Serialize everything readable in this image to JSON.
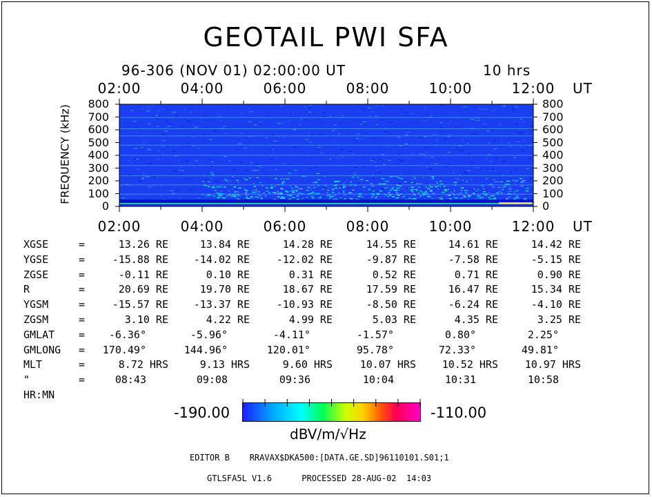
{
  "title": "GEOTAIL PWI SFA",
  "subtitle": "96-306 (NOV 01) 02:00:00 UT",
  "duration": "10 hrs",
  "chart_data": {
    "type": "heatmap",
    "title": "GEOTAIL PWI SFA",
    "ylabel": "FREQUENCY (kHz)",
    "xlabel": "UT",
    "ylim": [
      0,
      800
    ],
    "x_ticks": [
      "02:00",
      "04:00",
      "06:00",
      "08:00",
      "10:00",
      "12:00"
    ],
    "x_unit": "UT",
    "y_ticks": [
      "800",
      "700",
      "600",
      "500",
      "400",
      "300",
      "200",
      "100",
      "0"
    ],
    "colorbar": {
      "min": "-190.00",
      "max": "-110.00",
      "unit": "dBV/m/√Hz"
    },
    "grid": false,
    "colors": [
      "#1f1fff",
      "#00aaff",
      "#00ffff",
      "#00ff55",
      "#ccff00",
      "#ffd000",
      "#ff6000",
      "#ff0050",
      "#ff00c8"
    ]
  },
  "orbit": {
    "rows": [
      {
        "label": "XGSE",
        "eq": "=",
        "values": [
          "13.26 RE",
          "13.84 RE",
          "14.28 RE",
          "14.55 RE",
          "14.61 RE",
          "14.42 RE"
        ]
      },
      {
        "label": "YGSE",
        "eq": "=",
        "values": [
          "-15.88 RE",
          "-14.02 RE",
          "-12.02 RE",
          "-9.87 RE",
          "-7.58 RE",
          "-5.15 RE"
        ]
      },
      {
        "label": "ZGSE",
        "eq": "=",
        "values": [
          "-0.11 RE",
          "0.10 RE",
          "0.31 RE",
          "0.52 RE",
          "0.71 RE",
          "0.90 RE"
        ]
      },
      {
        "label": "R",
        "eq": "=",
        "values": [
          "20.69 RE",
          "19.70 RE",
          "18.67 RE",
          "17.59 RE",
          "16.47 RE",
          "15.34 RE"
        ]
      },
      {
        "label": "YGSM",
        "eq": "=",
        "values": [
          "-15.57 RE",
          "-13.37 RE",
          "-10.93 RE",
          "-8.50 RE",
          "-6.24 RE",
          "-4.10 RE"
        ]
      },
      {
        "label": "ZGSM",
        "eq": "=",
        "values": [
          "3.10 RE",
          "4.22 RE",
          "4.99 RE",
          "5.03 RE",
          "4.35 RE",
          "3.25 RE"
        ]
      },
      {
        "label": "GMLAT",
        "eq": "=",
        "values": [
          "-6.36°",
          "-5.96°",
          "-4.11°",
          "-1.57°",
          "0.80°",
          "2.25°"
        ]
      },
      {
        "label": "GMLONG",
        "eq": "=",
        "values": [
          "170.49°",
          "144.96°",
          "120.01°",
          "95.78°",
          "72.33°",
          "49.81°"
        ]
      },
      {
        "label": "MLT",
        "eq": "=",
        "values": [
          "8.72 HRS",
          "9.13 HRS",
          "9.60 HRS",
          "10.07 HRS",
          "10.52 HRS",
          "10.97 HRS"
        ]
      },
      {
        "label": "\" HR:MN",
        "eq": "=",
        "values": [
          "08:43",
          "09:08",
          "09:36",
          "10:04",
          "10:31",
          "10:58"
        ]
      }
    ]
  },
  "editor_line": "EDITOR B    RRAVAX$DKA500:[DATA.GE.SD]96110101.S01;1",
  "footer_line": "GTLSFA5L V1.6      PROCESSED 28-AUG-02  14:03"
}
